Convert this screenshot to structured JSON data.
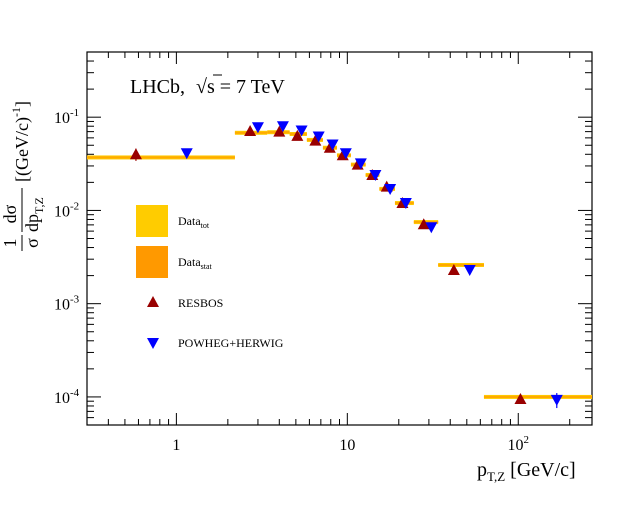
{
  "chart_data": {
    "type": "scatter",
    "title": "LHCb, √s = 7 TeV",
    "title_parts": {
      "experiment": "LHCb,",
      "sqrt": "√",
      "s_rest": "s = 7 TeV"
    },
    "xlabel": "p_{T,Z} [GeV/c]",
    "xlabel_parts": {
      "main": "p",
      "sub": "T,Z",
      "rest": "[GeV/c]"
    },
    "ylabel_parts": {
      "frac_num": "1",
      "frac_den": "σ",
      "d_num": "dσ",
      "d_den": "dp",
      "d_den_sub": "T,Z",
      "unit": "[(GeV/c)",
      "unit_sup": "-1",
      "unit_close": "]"
    },
    "x_scale": "log",
    "y_scale": "log",
    "xlim": [
      0.3,
      270
    ],
    "ylim": [
      5e-05,
      0.5
    ],
    "x_ticks": [
      {
        "value": 1,
        "base": "1",
        "exp": ""
      },
      {
        "value": 10,
        "base": "10",
        "exp": ""
      },
      {
        "value": 100,
        "base": "10",
        "exp": "2"
      }
    ],
    "y_ticks": [
      {
        "value": 0.0001,
        "base": "10",
        "exp": "-4"
      },
      {
        "value": 0.001,
        "base": "10",
        "exp": "-3"
      },
      {
        "value": 0.01,
        "base": "10",
        "exp": "-2"
      },
      {
        "value": 0.1,
        "base": "10",
        "exp": "-1"
      }
    ],
    "legend": [
      {
        "key": "tot",
        "label": "Data",
        "sub": "tot",
        "kind": "box",
        "color": "#ffcc00"
      },
      {
        "key": "stat",
        "label": "Data",
        "sub": "stat",
        "kind": "box",
        "color": "#ff9900"
      },
      {
        "key": "resbos",
        "label": "RESBOS",
        "kind": "triangle-up",
        "color": "#990000"
      },
      {
        "key": "powheg",
        "label": "POWHEG+HERWIG",
        "kind": "triangle-down",
        "color": "#0000ff"
      }
    ],
    "legend_position": "middle-left",
    "colors": {
      "data_line": "#ffaa00",
      "resbos": "#990000",
      "powheg": "#0000ff"
    },
    "data_bins": [
      {
        "xlow": 0.0,
        "xhigh": 2.2,
        "y": 0.037
      },
      {
        "xlow": 2.2,
        "xhigh": 3.4,
        "y": 0.068
      },
      {
        "xlow": 3.4,
        "xhigh": 4.6,
        "y": 0.069
      },
      {
        "xlow": 4.6,
        "xhigh": 5.8,
        "y": 0.066
      },
      {
        "xlow": 5.8,
        "xhigh": 7.2,
        "y": 0.057
      },
      {
        "xlow": 7.2,
        "xhigh": 8.7,
        "y": 0.047
      },
      {
        "xlow": 8.7,
        "xhigh": 10.5,
        "y": 0.039
      },
      {
        "xlow": 10.5,
        "xhigh": 12.8,
        "y": 0.031
      },
      {
        "xlow": 12.8,
        "xhigh": 15.4,
        "y": 0.024
      },
      {
        "xlow": 15.4,
        "xhigh": 19.0,
        "y": 0.017
      },
      {
        "xlow": 19.0,
        "xhigh": 24.5,
        "y": 0.012
      },
      {
        "xlow": 24.5,
        "xhigh": 34.0,
        "y": 0.0075
      },
      {
        "xlow": 34.0,
        "xhigh": 63.0,
        "y": 0.0026
      },
      {
        "xlow": 63.0,
        "xhigh": 270.0,
        "y": 0.0001
      }
    ],
    "series": [
      {
        "name": "RESBOS",
        "x": [
          0.58,
          2.7,
          4.0,
          5.1,
          6.5,
          7.9,
          9.4,
          11.5,
          14.0,
          17.0,
          21.0,
          28.0,
          42.0,
          103.0
        ],
        "y": [
          0.04,
          0.071,
          0.07,
          0.063,
          0.056,
          0.047,
          0.039,
          0.031,
          0.024,
          0.018,
          0.012,
          0.0071,
          0.0023,
          9.5e-05
        ],
        "yerr": [
          0.006,
          0,
          0,
          0,
          0,
          0,
          0,
          0,
          0,
          0,
          0,
          0,
          0,
          0
        ]
      },
      {
        "name": "POWHEG+HERWIG",
        "x": [
          1.15,
          3.0,
          4.2,
          5.4,
          6.8,
          8.2,
          9.8,
          12.0,
          14.6,
          17.8,
          22.0,
          31.0,
          52.0,
          168.0
        ],
        "y": [
          0.041,
          0.078,
          0.08,
          0.072,
          0.062,
          0.051,
          0.041,
          0.032,
          0.024,
          0.017,
          0.012,
          0.0066,
          0.0023,
          9.3e-05
        ],
        "yerr": [
          0,
          0,
          0,
          0,
          0,
          0,
          0,
          0,
          0,
          0,
          0,
          0,
          0,
          1.7e-05
        ]
      }
    ]
  }
}
